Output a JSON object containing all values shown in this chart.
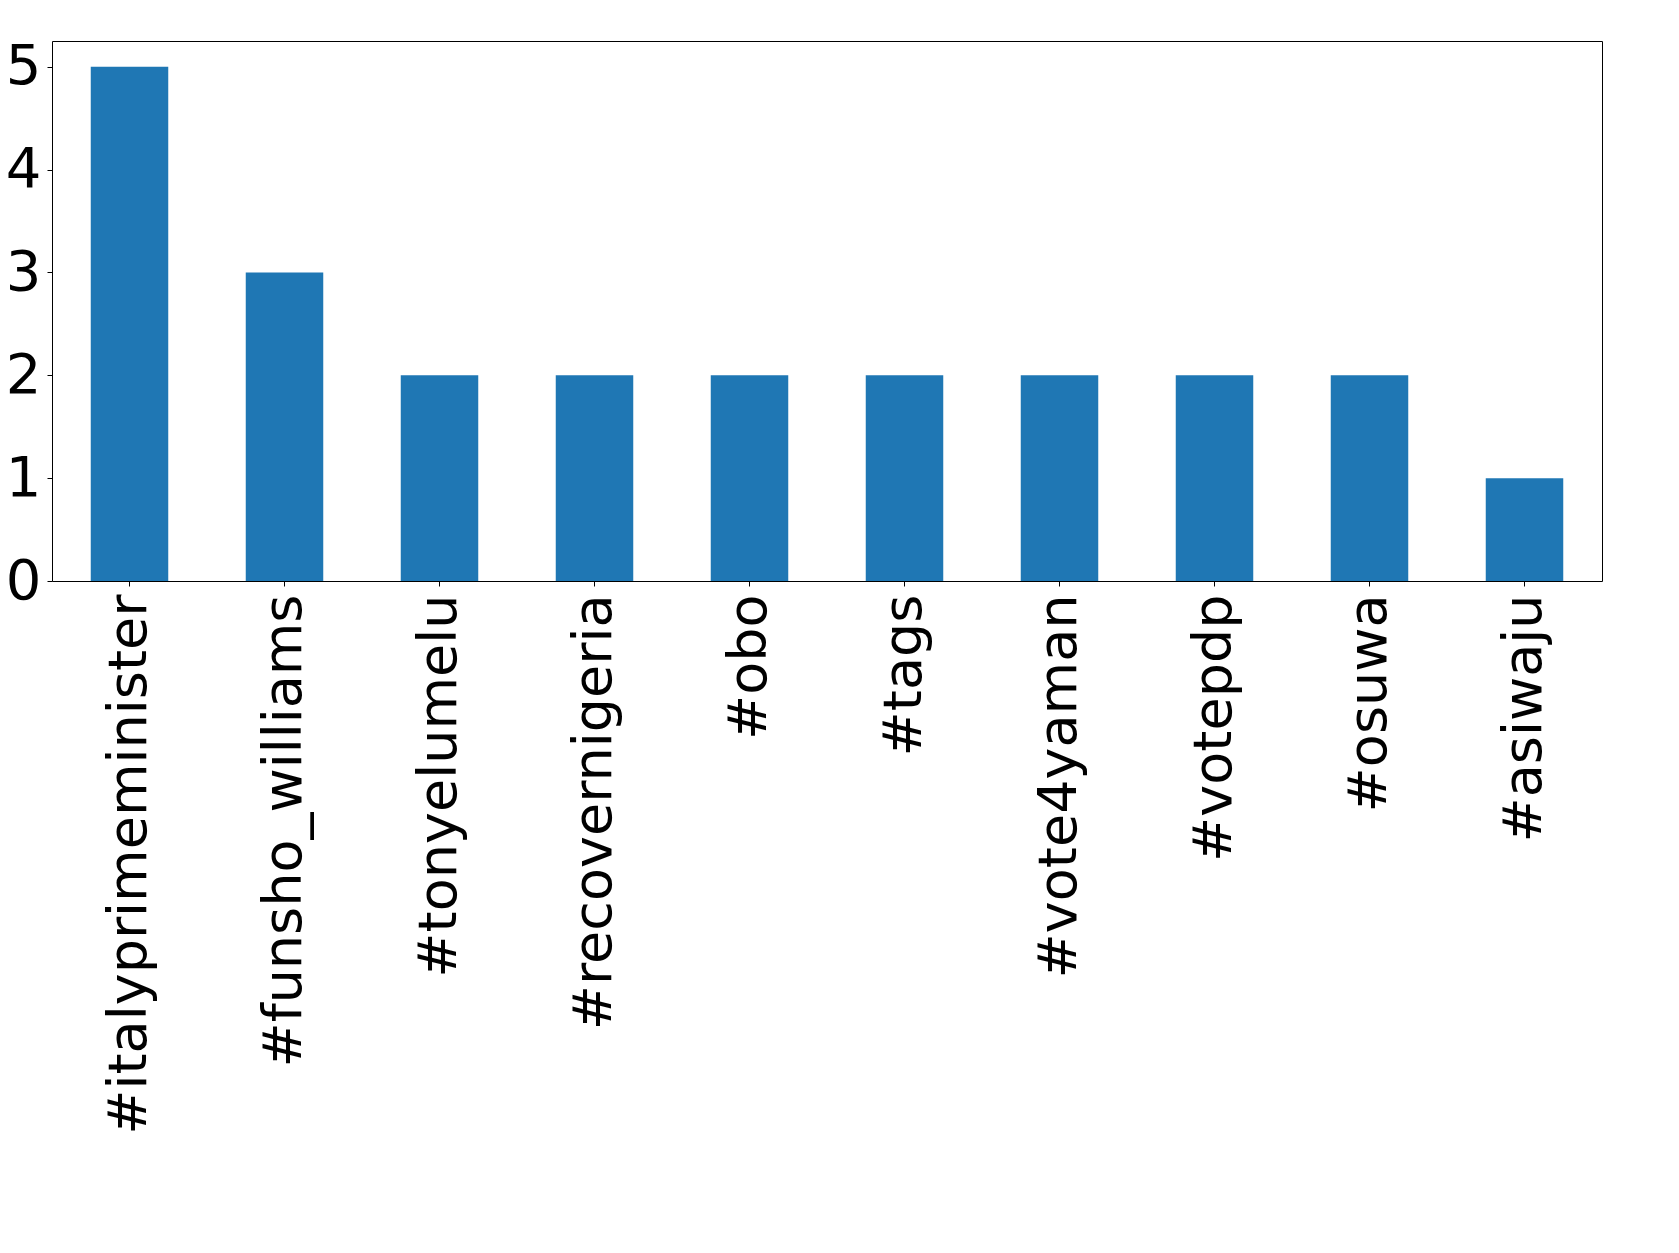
{
  "chart_data": {
    "type": "bar",
    "categories": [
      "#italyprimeminister",
      "#funsho_williams",
      "#tonyelumelu",
      "#recovernigeria",
      "#obo",
      "#tags",
      "#vote4yaman",
      "#votepdp",
      "#osuwa",
      "#asiwaju"
    ],
    "values": [
      5,
      3,
      2,
      2,
      2,
      2,
      2,
      2,
      2,
      1
    ],
    "color": "#1f77b4",
    "ylim": [
      0,
      5.25
    ],
    "yticks": [
      0,
      1,
      2,
      3,
      4,
      5
    ],
    "grid": false
  }
}
